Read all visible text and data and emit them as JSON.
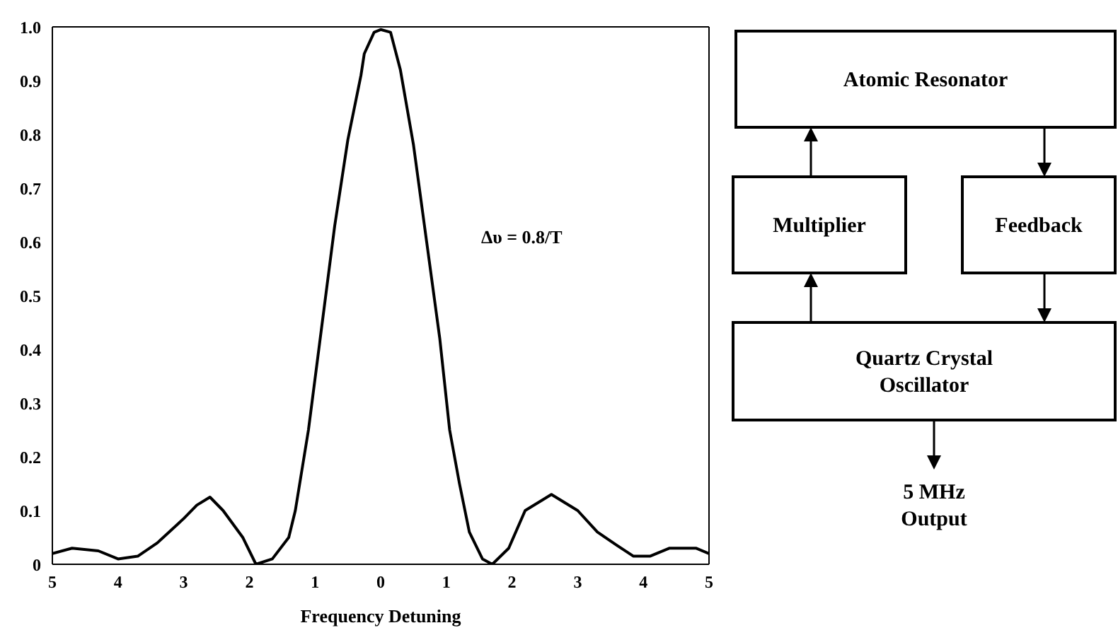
{
  "chart_data": [
    {
      "type": "line",
      "xlabel": "Frequency Detuning",
      "color": "#000000",
      "x": [
        -5,
        -4.7,
        -4.3,
        -4,
        -3.7,
        -3.4,
        -3,
        -2.8,
        -2.6,
        -2.4,
        -2.1,
        -1.9,
        -1.65,
        -1.4,
        -1.3,
        -1.1,
        -0.9,
        -0.7,
        -0.5,
        -0.3,
        -0.25,
        -0.1,
        0,
        0.15,
        0.3,
        0.5,
        0.7,
        0.9,
        1.05,
        1.2,
        1.35,
        1.55,
        1.7,
        1.95,
        2.2,
        2.6,
        3,
        3.3,
        3.6,
        3.85,
        4.1,
        4.4,
        4.8,
        5
      ],
      "values": [
        0.02,
        0.03,
        0.025,
        0.01,
        0.015,
        0.04,
        0.085,
        0.11,
        0.125,
        0.1,
        0.05,
        0,
        0.01,
        0.05,
        0.1,
        0.25,
        0.44,
        0.63,
        0.79,
        0.91,
        0.95,
        0.99,
        0.995,
        0.99,
        0.92,
        0.78,
        0.6,
        0.42,
        0.25,
        0.15,
        0.06,
        0.01,
        0,
        0.03,
        0.1,
        0.13,
        0.1,
        0.06,
        0.035,
        0.015,
        0.015,
        0.03,
        0.03,
        0.02
      ],
      "xlim": [
        -5,
        5
      ],
      "xticks": [
        {
          "value": -5,
          "label": "5"
        },
        {
          "value": -4,
          "label": "4"
        },
        {
          "value": -3,
          "label": "3"
        },
        {
          "value": -2,
          "label": "2"
        },
        {
          "value": -1,
          "label": "1"
        },
        0,
        1,
        2,
        3,
        4,
        5
      ],
      "ylim": [
        0,
        1
      ],
      "yticks": [
        0,
        0.1,
        0.2,
        0.3,
        0.4,
        0.5,
        0.6,
        0.7,
        0.8,
        0.9,
        {
          "value": 1,
          "label": "1.0"
        }
      ],
      "marker": "none",
      "line_style": "solid",
      "annotations": [
        "Δυ = 0.8/T"
      ]
    },
    {
      "type": "other",
      "annotations": [
        "Atomic Resonator",
        "Multiplier",
        "Feedback",
        "Quartz Crystal\nOscillator",
        "5 MHz\nOutput"
      ]
    }
  ]
}
